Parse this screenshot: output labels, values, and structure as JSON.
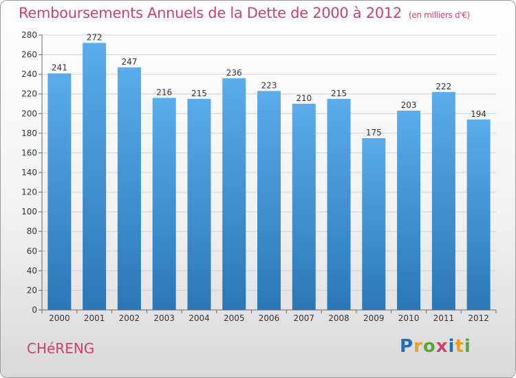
{
  "chart_data": {
    "type": "bar",
    "title": "Remboursements Annuels de la Dette de 2000 à 2012",
    "unit": "(en milliers d'€)",
    "categories": [
      "2000",
      "2001",
      "2002",
      "2003",
      "2004",
      "2005",
      "2006",
      "2007",
      "2008",
      "2009",
      "2010",
      "2011",
      "2012"
    ],
    "values": [
      241,
      272,
      247,
      216,
      215,
      236,
      223,
      210,
      215,
      175,
      203,
      222,
      194
    ],
    "ylim": [
      0,
      280
    ],
    "yticks": [
      0,
      20,
      40,
      60,
      80,
      100,
      120,
      140,
      160,
      180,
      200,
      220,
      240,
      260,
      280
    ],
    "grid": true,
    "bar_color_top": "#5aaceb",
    "bar_color_bottom": "#2a77b8"
  },
  "footer": {
    "city": "CHéRENG",
    "logo_letters": [
      "P",
      "r",
      "o",
      "x",
      "i",
      "t",
      "i"
    ],
    "logo_colors": [
      "#1f6fb5",
      "#e8a020",
      "#5aa632",
      "#d23c74",
      "#1f6fb5",
      "#e8a020",
      "#5aa632"
    ]
  }
}
